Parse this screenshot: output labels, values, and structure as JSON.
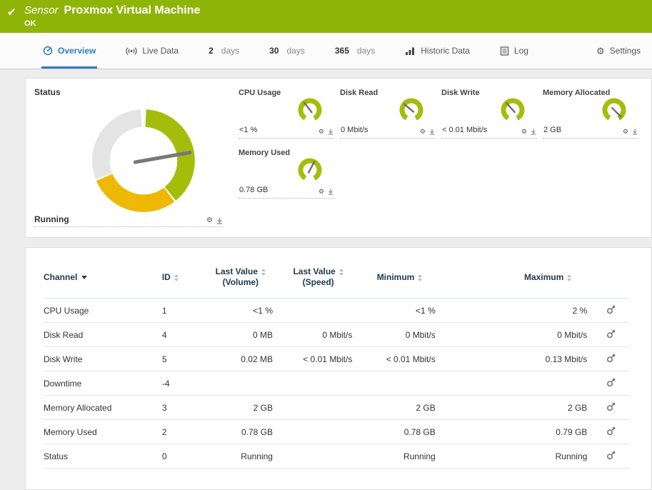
{
  "colors": {
    "header_green": "#8fb408",
    "gauge_green": "#a4bd0b",
    "gauge_yellow": "#edb906",
    "gauge_gray": "#e4e4e4",
    "active_tab_blue": "#2d7fc1"
  },
  "header": {
    "kind": "Sensor",
    "title": "Proxmox Virtual Machine",
    "status": "OK"
  },
  "tabs": {
    "overview": "Overview",
    "live_data": "Live Data",
    "days2_num": "2",
    "days2_unit": "days",
    "days30_num": "30",
    "days30_unit": "days",
    "days365_num": "365",
    "days365_unit": "days",
    "historic_data": "Historic Data",
    "log": "Log",
    "settings": "Settings"
  },
  "status_block": {
    "label": "Status",
    "value": "Running"
  },
  "main_gauge": {
    "needle_deg": 80
  },
  "gauges": [
    {
      "title": "CPU Usage",
      "value": "<1 %",
      "needle_deg": -38
    },
    {
      "title": "Disk Read",
      "value": "0 Mbit/s",
      "needle_deg": -50
    },
    {
      "title": "Disk Write",
      "value": "< 0.01 Mbit/s",
      "needle_deg": -42
    },
    {
      "title": "Memory Allocated",
      "value": "2 GB",
      "needle_deg": 135
    },
    {
      "title": "Memory Used",
      "value": "0.78 GB",
      "needle_deg": 28
    }
  ],
  "table": {
    "headers": {
      "channel": "Channel",
      "id": "ID",
      "last_value_volume_l1": "Last Value",
      "last_value_volume_l2": "(Volume)",
      "last_value_speed_l1": "Last Value",
      "last_value_speed_l2": "(Speed)",
      "minimum": "Minimum",
      "maximum": "Maximum"
    },
    "rows": [
      {
        "channel": "CPU Usage",
        "id": "1",
        "last_volume": "<1 %",
        "last_speed": "",
        "min": "<1 %",
        "max": "2 %"
      },
      {
        "channel": "Disk Read",
        "id": "4",
        "last_volume": "0 MB",
        "last_speed": "0 Mbit/s",
        "min": "0 Mbit/s",
        "max": "0 Mbit/s"
      },
      {
        "channel": "Disk Write",
        "id": "5",
        "last_volume": "0.02 MB",
        "last_speed": "< 0.01 Mbit/s",
        "min": "< 0.01 Mbit/s",
        "max": "0.13 Mbit/s"
      },
      {
        "channel": "Downtime",
        "id": "-4",
        "last_volume": "",
        "last_speed": "",
        "min": "",
        "max": ""
      },
      {
        "channel": "Memory Allocated",
        "id": "3",
        "last_volume": "2 GB",
        "last_speed": "",
        "min": "2 GB",
        "max": "2 GB"
      },
      {
        "channel": "Memory Used",
        "id": "2",
        "last_volume": "0.78 GB",
        "last_speed": "",
        "min": "0.78 GB",
        "max": "0.79 GB"
      },
      {
        "channel": "Status",
        "id": "0",
        "last_volume": "Running",
        "last_speed": "",
        "min": "Running",
        "max": "Running"
      }
    ]
  }
}
